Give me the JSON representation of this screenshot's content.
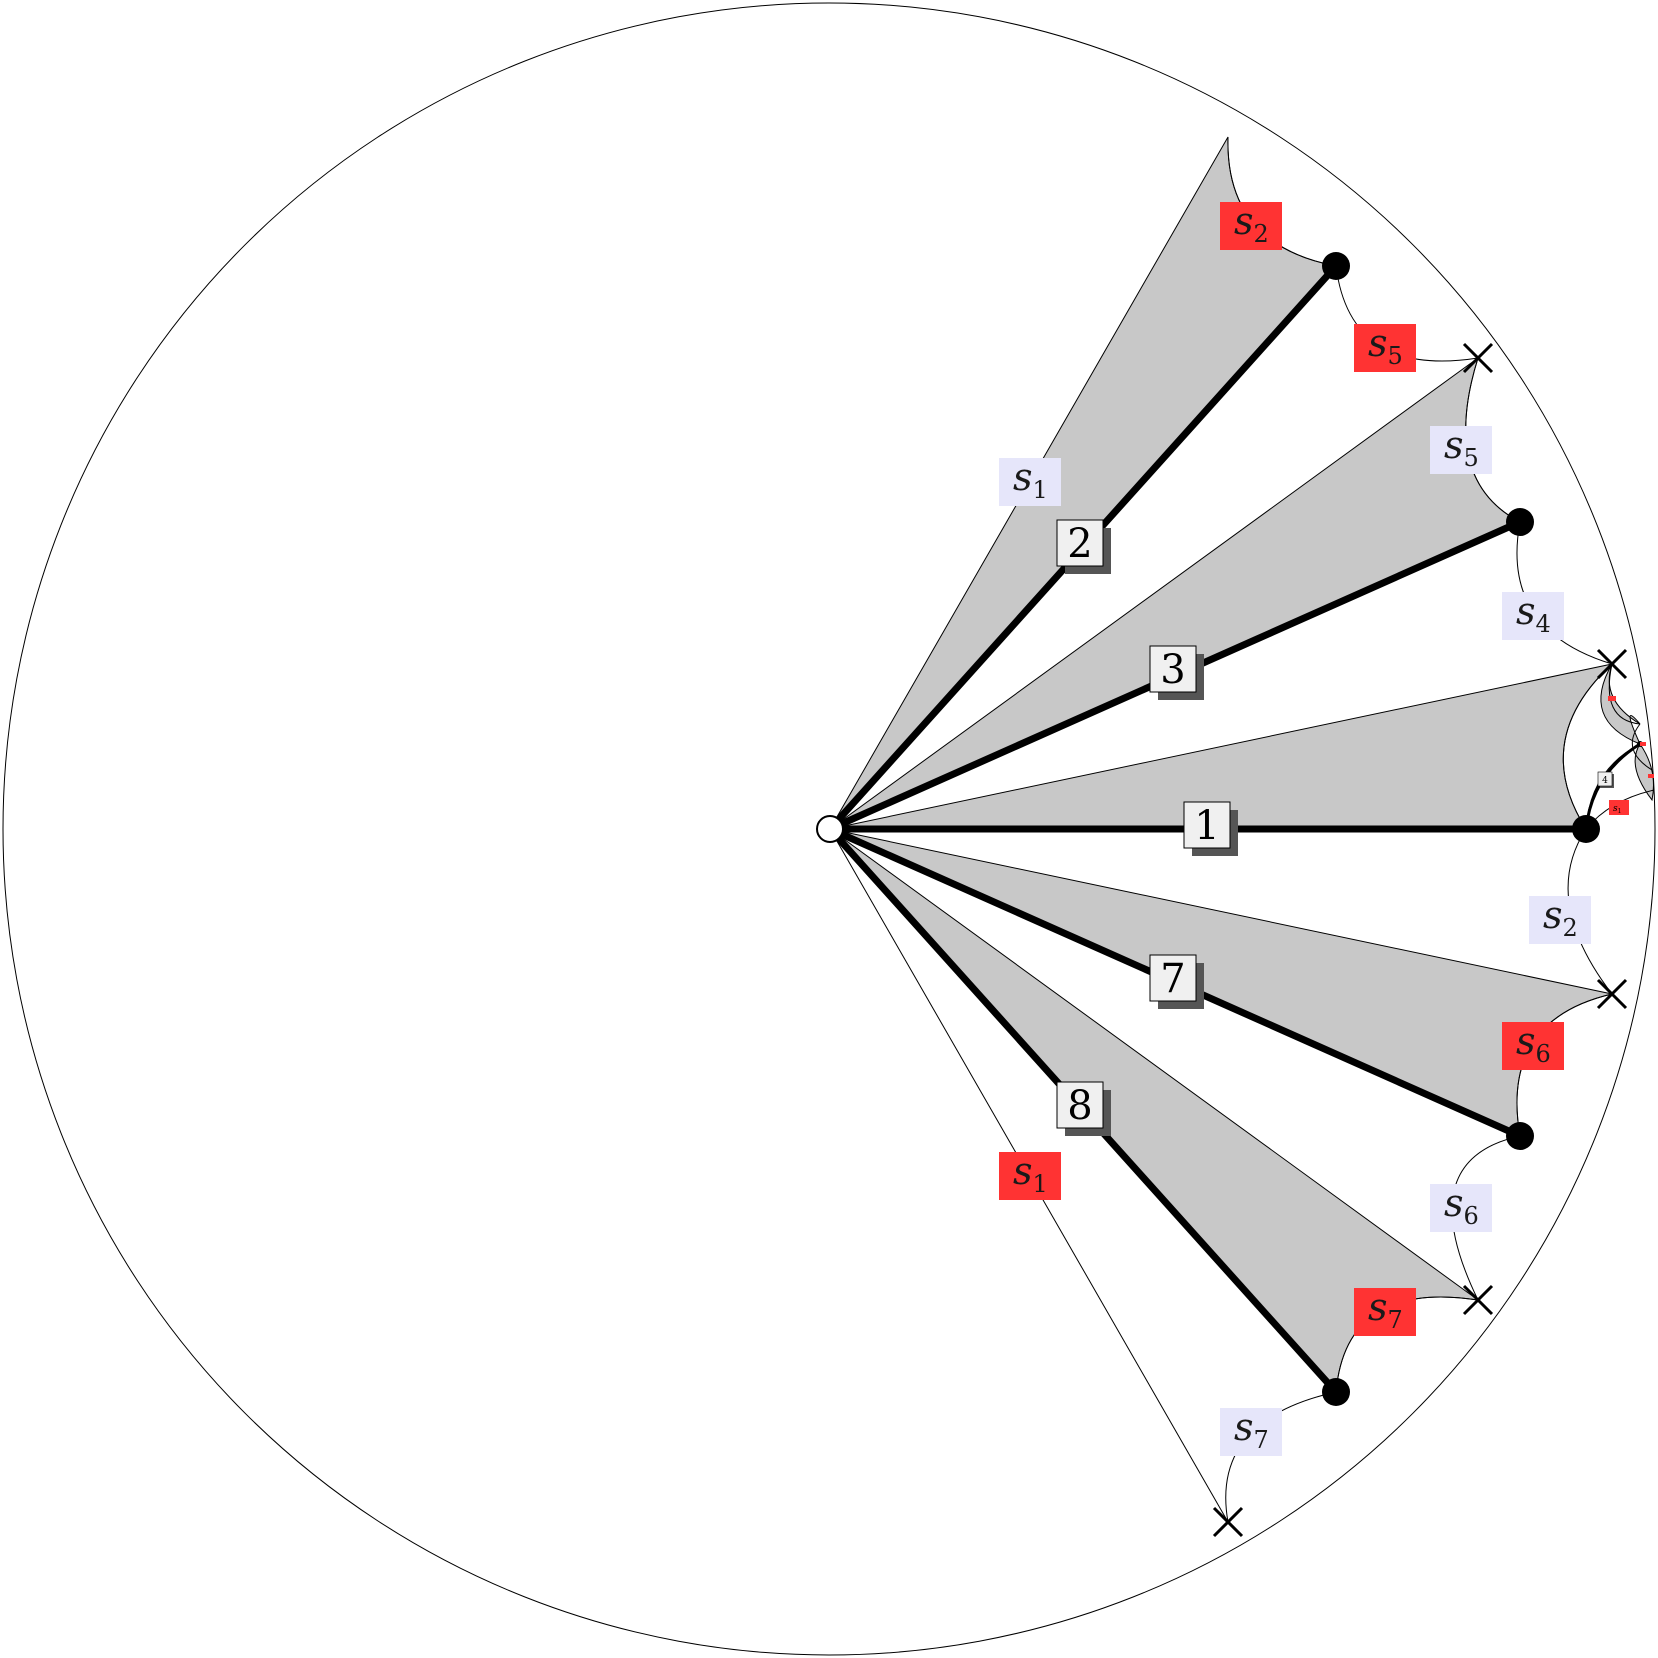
{
  "edges": [
    {
      "number": "1"
    },
    {
      "number": "2"
    },
    {
      "number": "3"
    },
    {
      "number": "7"
    },
    {
      "number": "8"
    },
    {
      "number": "4"
    }
  ],
  "labels": [
    {
      "base": "s",
      "sub": "1",
      "color": "lavender"
    },
    {
      "base": "s",
      "sub": "2",
      "color": "red"
    },
    {
      "base": "s",
      "sub": "5",
      "color": "red"
    },
    {
      "base": "s",
      "sub": "5",
      "color": "lavender"
    },
    {
      "base": "s",
      "sub": "4",
      "color": "lavender"
    },
    {
      "base": "s",
      "sub": "2",
      "color": "lavender"
    },
    {
      "base": "s",
      "sub": "6",
      "color": "red"
    },
    {
      "base": "s",
      "sub": "6",
      "color": "lavender"
    },
    {
      "base": "s",
      "sub": "7",
      "color": "red"
    },
    {
      "base": "s",
      "sub": "7",
      "color": "lavender"
    },
    {
      "base": "s",
      "sub": "1",
      "color": "red"
    },
    {
      "base": "s",
      "sub": "1",
      "color": "red"
    }
  ],
  "colors": {
    "region_fill": "#c8c8c8",
    "label_red": "#ff3333",
    "label_lavender": "#e6e6fa",
    "number_box": "#f0f0f0",
    "number_shadow": "#555555"
  }
}
